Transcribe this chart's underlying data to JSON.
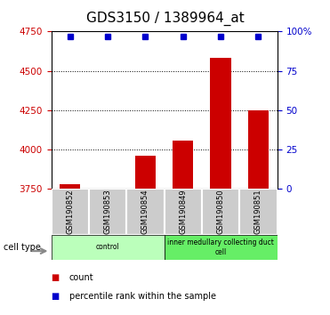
{
  "title": "GDS3150 / 1389964_at",
  "categories": [
    "GSM190852",
    "GSM190853",
    "GSM190854",
    "GSM190849",
    "GSM190850",
    "GSM190851"
  ],
  "bar_values": [
    3780,
    3755,
    3960,
    4060,
    4580,
    4250
  ],
  "bar_bottom": 3750,
  "percentile_values": [
    97,
    97,
    97,
    97,
    97,
    97
  ],
  "bar_color": "#cc0000",
  "percentile_color": "#0000cc",
  "ylim_left": [
    3750,
    4750
  ],
  "ylim_right": [
    0,
    100
  ],
  "yticks_left": [
    3750,
    4000,
    4250,
    4500,
    4750
  ],
  "yticks_right": [
    0,
    25,
    50,
    75,
    100
  ],
  "ytick_labels_right": [
    "0",
    "25",
    "50",
    "75",
    "100%"
  ],
  "grid_values": [
    4000,
    4250,
    4500,
    4750
  ],
  "cell_types": [
    {
      "label": "control",
      "start": 0,
      "end": 3,
      "color": "#bbffbb"
    },
    {
      "label": "inner medullary collecting duct\ncell",
      "start": 3,
      "end": 6,
      "color": "#66ee66"
    }
  ],
  "sample_box_color": "#cccccc",
  "cell_type_label": "cell type",
  "bar_width": 0.55,
  "left_tick_color": "#cc0000",
  "right_tick_color": "#0000cc",
  "title_fontsize": 11,
  "tick_fontsize": 7.5,
  "legend_fontsize": 7,
  "sample_fontsize": 6
}
